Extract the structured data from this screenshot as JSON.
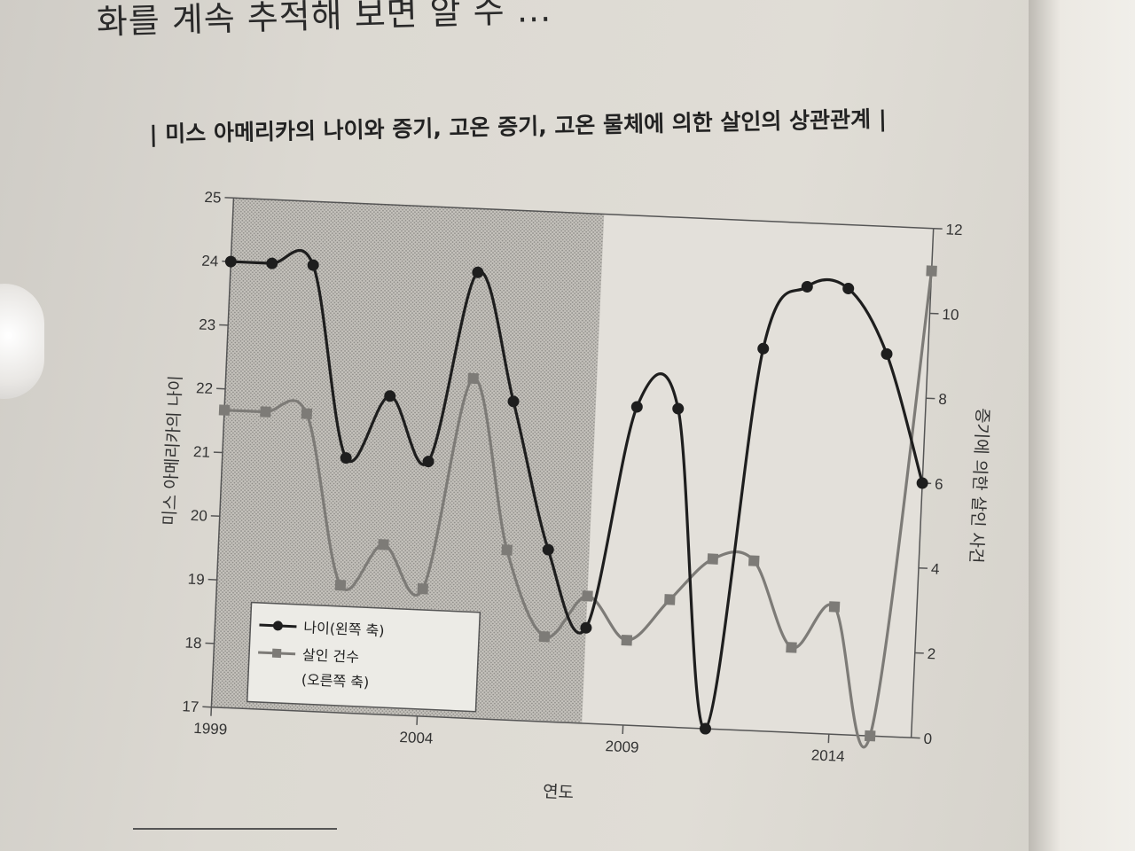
{
  "page": {
    "top_text": "화를 계속 추적해 보면 알 수 ...",
    "chart_title": "| 미스 아메리카의 나이와 증기, 고온 증기, 고온 물체에 의한 살인의 상관관계 |"
  },
  "chart_data": {
    "type": "line",
    "title": "미스 아메리카의 나이와 증기, 고온 증기, 고온 물체에 의한 살인의 상관관계",
    "xlabel": "연도",
    "ylabel_left": "미스 아메리카의 나이",
    "ylabel_right": "증기에 의한 살인 사건",
    "x": [
      1999,
      2000,
      2001,
      2002,
      2003,
      2004,
      2005,
      2006,
      2007,
      2008,
      2009,
      2010,
      2011,
      2012,
      2013,
      2014,
      2015,
      2016
    ],
    "xlim": [
      1999,
      2016
    ],
    "x_ticks": [
      "1999",
      "2004",
      "2009",
      "2014"
    ],
    "ylim_left": [
      17,
      25
    ],
    "y_ticks_left": [
      "17",
      "18",
      "19",
      "20",
      "21",
      "22",
      "23",
      "24",
      "25"
    ],
    "ylim_right": [
      0,
      12
    ],
    "y_ticks_right": [
      "0",
      "2",
      "4",
      "6",
      "8",
      "10",
      "12"
    ],
    "shaded_region": [
      1999,
      2008
    ],
    "series": [
      {
        "name": "나이(왼쪽 축)",
        "axis": "left",
        "marker": "circle",
        "values": [
          24,
          24,
          24,
          21,
          22,
          21,
          24,
          22,
          19.7,
          18.5,
          22,
          22,
          17,
          23,
          24,
          24,
          23,
          21
        ]
      },
      {
        "name": "살인 건수 (오른쪽 축)",
        "axis": "right",
        "marker": "square",
        "values": [
          7,
          7,
          7,
          3,
          4,
          3,
          8,
          4,
          2,
          3,
          2,
          3,
          4,
          4,
          2,
          3,
          0,
          11
        ]
      }
    ],
    "legend": {
      "age_label": "나이(왼쪽 축)",
      "murders_line1": "살인 건수",
      "murders_line2": "(오른쪽 축)"
    }
  }
}
